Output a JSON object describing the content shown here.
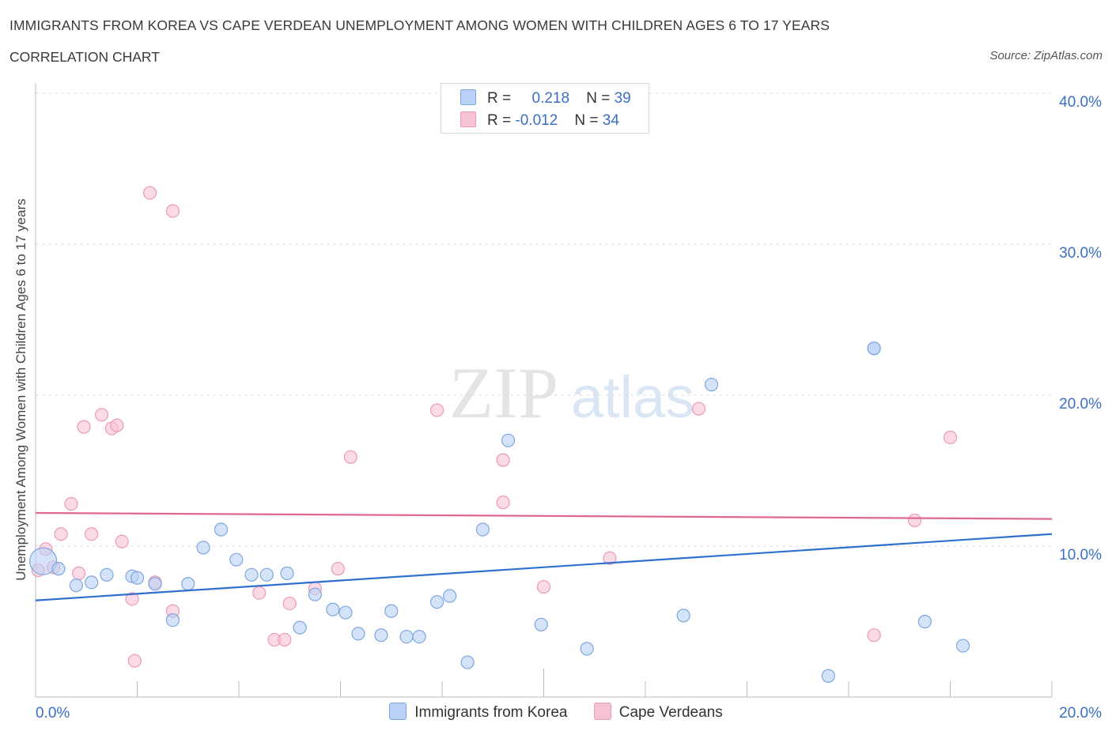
{
  "header": {
    "title": "IMMIGRANTS FROM KOREA VS CAPE VERDEAN UNEMPLOYMENT AMONG WOMEN WITH CHILDREN AGES 6 TO 17 YEARS",
    "subtitle": "CORRELATION CHART",
    "source": "Source: ZipAtlas.com"
  },
  "legend": {
    "korea": {
      "r_label": "R =",
      "r_value": "0.218",
      "n_label": "N =",
      "n_value": "39"
    },
    "cape": {
      "r_label": "R =",
      "r_value": "-0.012",
      "n_label": "N =",
      "n_value": "34"
    }
  },
  "bottom_legend": {
    "korea": "Immigrants from Korea",
    "cape": "Cape Verdeans"
  },
  "colors": {
    "korea_fill": "#b9d1f5",
    "korea_stroke": "#7ea6e0",
    "korea_line": "#2f6fce",
    "cape_fill": "#f7c3d3",
    "cape_stroke": "#ec9ab5",
    "cape_line": "#e0688f",
    "tick_label": "#3a6fc4",
    "grid": "#dddddd"
  },
  "chart_data": {
    "type": "scatter",
    "title": "IMMIGRANTS FROM KOREA VS CAPE VERDEAN UNEMPLOYMENT AMONG WOMEN WITH CHILDREN AGES 6 TO 17 YEARS",
    "ylabel": "Unemployment Among Women with Children Ages 6 to 17 years",
    "xlabel": "",
    "xlim": [
      0,
      20
    ],
    "ylim": [
      0,
      40
    ],
    "x_tick_labels": [
      "0.0%",
      "20.0%"
    ],
    "y_ticks": [
      10,
      20,
      30,
      40
    ],
    "y_tick_labels": [
      "10.0%",
      "20.0%",
      "30.0%",
      "40.0%"
    ],
    "grid": "horizontal dashed",
    "legend_position": "top-center",
    "watermark": "ZIPatlas",
    "series": [
      {
        "name": "Immigrants from Korea",
        "r": 0.218,
        "n": 39,
        "trend": {
          "x": [
            0,
            20
          ],
          "y": [
            6.4,
            10.8
          ]
        },
        "points": [
          {
            "x": 0.15,
            "y": 9.0,
            "big": true
          },
          {
            "x": 0.45,
            "y": 8.5
          },
          {
            "x": 0.8,
            "y": 7.4
          },
          {
            "x": 1.1,
            "y": 7.6
          },
          {
            "x": 1.4,
            "y": 8.1
          },
          {
            "x": 1.9,
            "y": 8.0
          },
          {
            "x": 2.0,
            "y": 7.9
          },
          {
            "x": 2.35,
            "y": 7.5
          },
          {
            "x": 2.7,
            "y": 5.1
          },
          {
            "x": 3.0,
            "y": 7.5
          },
          {
            "x": 3.3,
            "y": 9.9
          },
          {
            "x": 3.65,
            "y": 11.1
          },
          {
            "x": 3.95,
            "y": 9.1
          },
          {
            "x": 4.25,
            "y": 8.1
          },
          {
            "x": 4.55,
            "y": 8.1
          },
          {
            "x": 4.95,
            "y": 8.2
          },
          {
            "x": 5.2,
            "y": 4.6
          },
          {
            "x": 5.5,
            "y": 6.8
          },
          {
            "x": 5.85,
            "y": 5.8
          },
          {
            "x": 6.1,
            "y": 5.6
          },
          {
            "x": 6.35,
            "y": 4.2
          },
          {
            "x": 6.8,
            "y": 4.1
          },
          {
            "x": 7.0,
            "y": 5.7
          },
          {
            "x": 7.3,
            "y": 4.0
          },
          {
            "x": 7.55,
            "y": 4.0
          },
          {
            "x": 7.9,
            "y": 6.3
          },
          {
            "x": 8.15,
            "y": 6.7
          },
          {
            "x": 8.5,
            "y": 2.3
          },
          {
            "x": 8.8,
            "y": 11.1
          },
          {
            "x": 9.3,
            "y": 17.0
          },
          {
            "x": 9.95,
            "y": 4.8
          },
          {
            "x": 10.85,
            "y": 3.2
          },
          {
            "x": 12.75,
            "y": 5.4
          },
          {
            "x": 13.3,
            "y": 20.7
          },
          {
            "x": 15.6,
            "y": 1.4
          },
          {
            "x": 16.5,
            "y": 23.1
          },
          {
            "x": 16.5,
            "y": 23.1
          },
          {
            "x": 17.5,
            "y": 5.0
          },
          {
            "x": 18.25,
            "y": 3.4
          }
        ]
      },
      {
        "name": "Cape Verdeans",
        "r": -0.012,
        "n": 34,
        "trend": {
          "x": [
            0,
            20
          ],
          "y": [
            12.2,
            11.8
          ]
        },
        "points": [
          {
            "x": 0.05,
            "y": 8.4
          },
          {
            "x": 0.2,
            "y": 9.8
          },
          {
            "x": 0.35,
            "y": 8.6
          },
          {
            "x": 0.5,
            "y": 10.8
          },
          {
            "x": 0.7,
            "y": 12.8
          },
          {
            "x": 0.85,
            "y": 8.2
          },
          {
            "x": 0.95,
            "y": 17.9
          },
          {
            "x": 1.1,
            "y": 10.8
          },
          {
            "x": 1.3,
            "y": 18.7
          },
          {
            "x": 1.5,
            "y": 17.8
          },
          {
            "x": 1.6,
            "y": 18.0
          },
          {
            "x": 1.7,
            "y": 10.3
          },
          {
            "x": 1.9,
            "y": 6.5
          },
          {
            "x": 1.95,
            "y": 2.4
          },
          {
            "x": 2.25,
            "y": 33.4
          },
          {
            "x": 2.35,
            "y": 7.6
          },
          {
            "x": 2.7,
            "y": 5.7
          },
          {
            "x": 2.7,
            "y": 32.2
          },
          {
            "x": 4.4,
            "y": 6.9
          },
          {
            "x": 4.7,
            "y": 3.8
          },
          {
            "x": 4.9,
            "y": 3.8
          },
          {
            "x": 5.0,
            "y": 6.2
          },
          {
            "x": 5.5,
            "y": 7.2
          },
          {
            "x": 5.95,
            "y": 8.5
          },
          {
            "x": 6.2,
            "y": 15.9
          },
          {
            "x": 7.9,
            "y": 19.0
          },
          {
            "x": 9.2,
            "y": 12.9
          },
          {
            "x": 10.0,
            "y": 7.3
          },
          {
            "x": 11.3,
            "y": 9.2
          },
          {
            "x": 13.05,
            "y": 19.1
          },
          {
            "x": 9.2,
            "y": 15.7
          },
          {
            "x": 17.3,
            "y": 11.7
          },
          {
            "x": 18.0,
            "y": 17.2
          },
          {
            "x": 16.5,
            "y": 4.1
          }
        ]
      }
    ]
  }
}
